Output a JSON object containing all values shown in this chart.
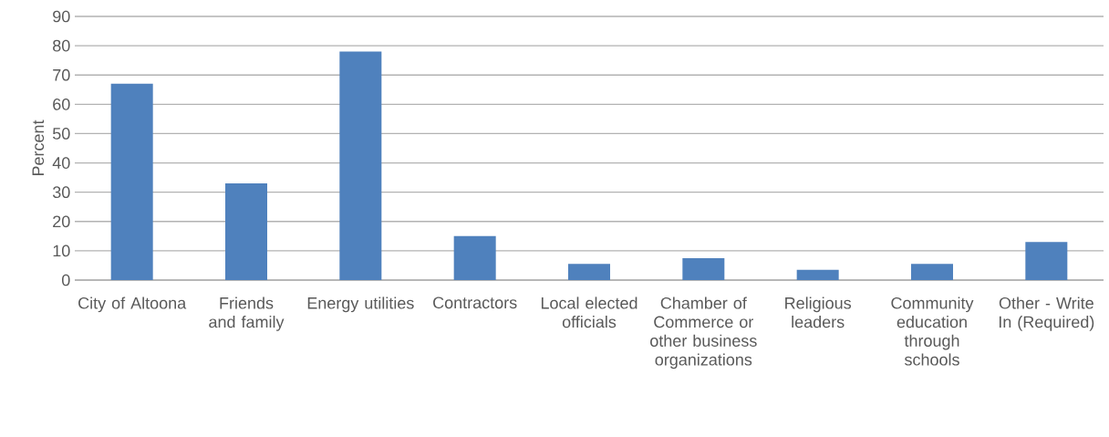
{
  "chart_data": {
    "type": "bar",
    "ylabel": "Percent",
    "categories": [
      "City of Altoona",
      "Friends and family",
      "Energy utilities",
      "Contractors",
      "Local elected officials",
      "Chamber of Commerce or other business organizations",
      "Religious leaders",
      "Community education through schools",
      "Other - Write In (Required)"
    ],
    "values": [
      67,
      33,
      78,
      15,
      5.5,
      7.5,
      3.5,
      5.5,
      13
    ],
    "color": "#4f81bd",
    "ylim": [
      0,
      90
    ],
    "yticks": [
      0,
      10,
      20,
      30,
      40,
      50,
      60,
      70,
      80,
      90
    ],
    "grid": "y"
  }
}
